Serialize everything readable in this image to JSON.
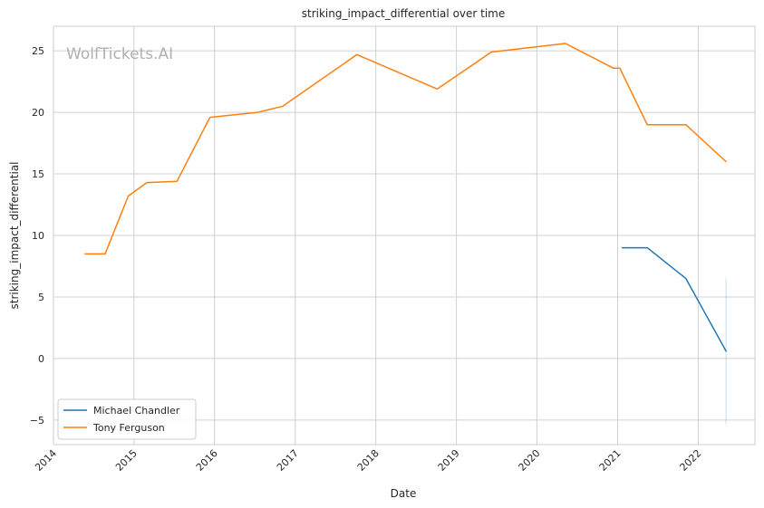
{
  "watermark": "WolfTickets.AI",
  "colors": {
    "chandler": "#1f77b4",
    "ferguson": "#ff7f0e",
    "grid": "#d0d0d0",
    "frame": "#cccccc"
  },
  "chart_data": {
    "type": "line",
    "title": "striking_impact_differential over time",
    "xlabel": "Date",
    "ylabel": "striking_impact_differential",
    "xlim": [
      "2014-01-01",
      "2022-09-15"
    ],
    "ylim": [
      -7,
      27
    ],
    "x_ticks": [
      "2014",
      "2015",
      "2016",
      "2017",
      "2018",
      "2019",
      "2020",
      "2021",
      "2022"
    ],
    "y_ticks": [
      -5,
      0,
      5,
      10,
      15,
      20,
      25
    ],
    "y_tick_labels": [
      "−5",
      "0",
      "5",
      "10",
      "15",
      "20",
      "25"
    ],
    "grid": true,
    "legend_position": "lower-left",
    "series": [
      {
        "name": "Michael Chandler",
        "color": "#1f77b4",
        "points": [
          {
            "x": "2021-01-22",
            "y": 9.0
          },
          {
            "x": "2021-05-15",
            "y": 9.0
          },
          {
            "x": "2021-11-06",
            "y": 6.5
          },
          {
            "x": "2022-05-07",
            "y": 0.6
          }
        ],
        "band": {
          "x": "2022-05-07",
          "low": -5.3,
          "high": 6.5
        }
      },
      {
        "name": "Tony Ferguson",
        "color": "#ff7f0e",
        "points": [
          {
            "x": "2014-05-24",
            "y": 8.5
          },
          {
            "x": "2014-08-23",
            "y": 8.5
          },
          {
            "x": "2014-12-06",
            "y": 13.2
          },
          {
            "x": "2015-02-28",
            "y": 14.3
          },
          {
            "x": "2015-07-15",
            "y": 14.4
          },
          {
            "x": "2015-12-11",
            "y": 19.6
          },
          {
            "x": "2016-07-13",
            "y": 20.0
          },
          {
            "x": "2016-11-05",
            "y": 20.5
          },
          {
            "x": "2017-10-07",
            "y": 24.7
          },
          {
            "x": "2018-10-06",
            "y": 21.9
          },
          {
            "x": "2019-06-08",
            "y": 24.9
          },
          {
            "x": "2020-05-09",
            "y": 25.6
          },
          {
            "x": "2020-12-12",
            "y": 23.6
          },
          {
            "x": "2021-01-10",
            "y": 23.6
          },
          {
            "x": "2021-05-15",
            "y": 19.0
          },
          {
            "x": "2021-11-06",
            "y": 19.0
          },
          {
            "x": "2022-05-07",
            "y": 16.0
          }
        ]
      }
    ]
  }
}
